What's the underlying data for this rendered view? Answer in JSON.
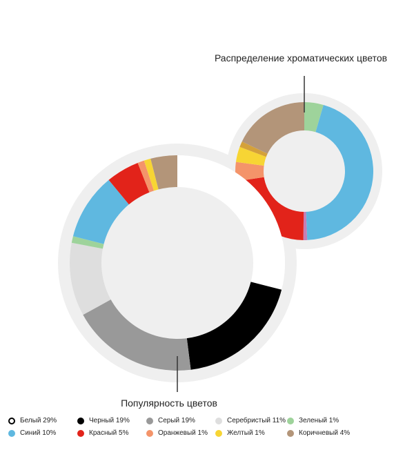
{
  "chart_data": [
    {
      "type": "donut",
      "title": "Популярность цветов",
      "series": [
        {
          "name": "Белый",
          "label": "29%",
          "value": 29,
          "color": "#ffffff"
        },
        {
          "name": "Черный",
          "label": "19%",
          "value": 19,
          "color": "#000000"
        },
        {
          "name": "Серый",
          "label": "19%",
          "value": 19,
          "color": "#999999"
        },
        {
          "name": "Серебристый",
          "label": "11%",
          "value": 11,
          "color": "#dedede"
        },
        {
          "name": "Зеленый",
          "label": "1%",
          "value": 1,
          "color": "#9ed39b"
        },
        {
          "name": "Синий",
          "label": "10%",
          "value": 10,
          "color": "#5fb8e0"
        },
        {
          "name": "Красный",
          "label": "5%",
          "value": 5,
          "color": "#e2231a"
        },
        {
          "name": "Оранжевый",
          "label": "1%",
          "value": 1,
          "color": "#f4946a"
        },
        {
          "name": "Желтый",
          "label": "1%",
          "value": 1,
          "color": "#f7d534"
        },
        {
          "name": "Коричневый",
          "label": "4%",
          "value": 4,
          "color": "#b39579"
        }
      ]
    },
    {
      "type": "donut",
      "title": "Распределение хроматических цветов",
      "series": [
        {
          "name": "Зеленый",
          "value": 1,
          "color": "#9ed39b"
        },
        {
          "name": "Синий",
          "value": 10,
          "color": "#5fb8e0"
        },
        {
          "name": "Розовый",
          "value": 0.2,
          "color": "#c77eb5"
        },
        {
          "name": "Красный",
          "value": 5,
          "color": "#e2231a"
        },
        {
          "name": "Оранжевый",
          "value": 1,
          "color": "#f4946a"
        },
        {
          "name": "Желтый",
          "value": 0.8,
          "color": "#f7d534"
        },
        {
          "name": "Горчичный",
          "value": 0.3,
          "color": "#d4a13a"
        },
        {
          "name": "Коричневый",
          "value": 4,
          "color": "#b39579"
        }
      ]
    }
  ],
  "legend": [
    {
      "text": "Белый 29%",
      "color": "#ffffff",
      "outlined": true
    },
    {
      "text": "Черный 19%",
      "color": "#000000"
    },
    {
      "text": "Серый 19%",
      "color": "#999999"
    },
    {
      "text": "Серебристый 11%",
      "color": "#dedede"
    },
    {
      "text": "Зеленый 1%",
      "color": "#9ed39b"
    },
    {
      "text": "Синий 10%",
      "color": "#5fb8e0"
    },
    {
      "text": "Красный 5%",
      "color": "#e2231a"
    },
    {
      "text": "Оранжевый 1%",
      "color": "#f4946a"
    },
    {
      "text": "Желтый 1%",
      "color": "#f7d534"
    },
    {
      "text": "Коричневый 4%",
      "color": "#b39579"
    }
  ]
}
